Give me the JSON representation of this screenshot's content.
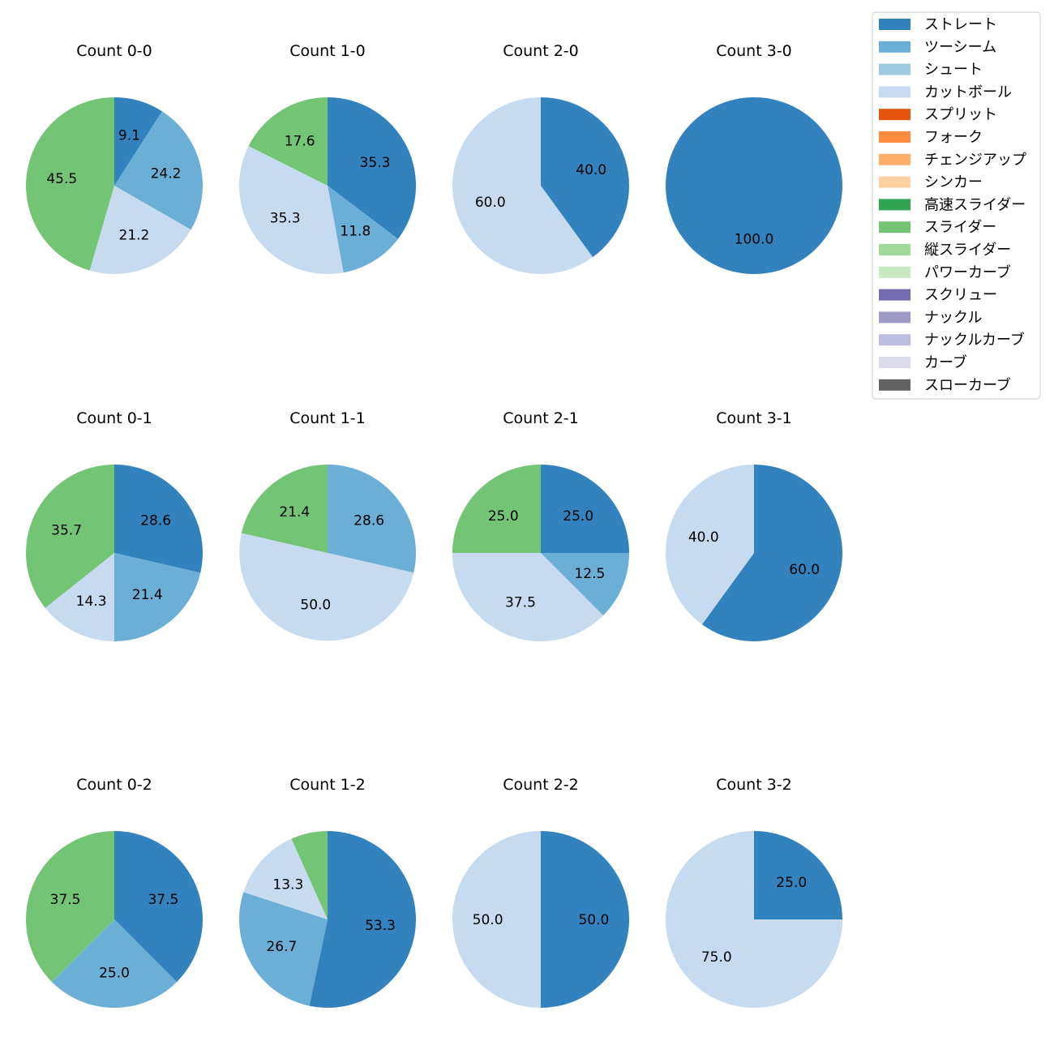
{
  "chart_data": {
    "type": "pie",
    "legend_position": "top-right",
    "colors": {
      "ストレート": "#3182bd",
      "ツーシーム": "#6baed6",
      "シュート": "#9ecae1",
      "カットボール": "#c6dbef",
      "スプリット": "#e6550d",
      "フォーク": "#fd8d3c",
      "チェンジアップ": "#fdae6b",
      "シンカー": "#fdd0a2",
      "高速スライダー": "#31a354",
      "スライダー": "#74c476",
      "縦スライダー": "#a1d99b",
      "パワーカーブ": "#c7e9c0",
      "スクリュー": "#756bb1",
      "ナックル": "#9e9ac8",
      "ナックルカーブ": "#bcbddc",
      "カーブ": "#dadaeb",
      "スローカーブ": "#636363"
    },
    "legend": [
      "ストレート",
      "ツーシーム",
      "シュート",
      "カットボール",
      "スプリット",
      "フォーク",
      "チェンジアップ",
      "シンカー",
      "高速スライダー",
      "スライダー",
      "縦スライダー",
      "パワーカーブ",
      "スクリュー",
      "ナックル",
      "ナックルカーブ",
      "カーブ",
      "スローカーブ"
    ],
    "charts": [
      {
        "title": "Count 0-0",
        "slices": [
          {
            "label": "ストレート",
            "value": 9.1
          },
          {
            "label": "ツーシーム",
            "value": 24.2
          },
          {
            "label": "カットボール",
            "value": 21.2
          },
          {
            "label": "スライダー",
            "value": 45.5
          }
        ]
      },
      {
        "title": "Count 1-0",
        "slices": [
          {
            "label": "ストレート",
            "value": 35.3
          },
          {
            "label": "ツーシーム",
            "value": 11.8
          },
          {
            "label": "カットボール",
            "value": 35.3
          },
          {
            "label": "スライダー",
            "value": 17.6
          }
        ]
      },
      {
        "title": "Count 2-0",
        "slices": [
          {
            "label": "ストレート",
            "value": 40.0
          },
          {
            "label": "カットボール",
            "value": 60.0
          }
        ]
      },
      {
        "title": "Count 3-0",
        "slices": [
          {
            "label": "ストレート",
            "value": 100.0
          }
        ]
      },
      {
        "title": "Count 0-1",
        "slices": [
          {
            "label": "ストレート",
            "value": 28.6
          },
          {
            "label": "ツーシーム",
            "value": 21.4
          },
          {
            "label": "カットボール",
            "value": 14.3
          },
          {
            "label": "スライダー",
            "value": 35.7
          }
        ]
      },
      {
        "title": "Count 1-1",
        "slices": [
          {
            "label": "ツーシーム",
            "value": 28.6
          },
          {
            "label": "カットボール",
            "value": 50.0
          },
          {
            "label": "スライダー",
            "value": 21.4
          }
        ]
      },
      {
        "title": "Count 2-1",
        "slices": [
          {
            "label": "ストレート",
            "value": 25.0
          },
          {
            "label": "ツーシーム",
            "value": 12.5
          },
          {
            "label": "カットボール",
            "value": 37.5
          },
          {
            "label": "スライダー",
            "value": 25.0
          }
        ]
      },
      {
        "title": "Count 3-1",
        "slices": [
          {
            "label": "ストレート",
            "value": 60.0
          },
          {
            "label": "カットボール",
            "value": 40.0
          }
        ]
      },
      {
        "title": "Count 0-2",
        "slices": [
          {
            "label": "ストレート",
            "value": 37.5
          },
          {
            "label": "ツーシーム",
            "value": 25.0
          },
          {
            "label": "スライダー",
            "value": 37.5
          }
        ]
      },
      {
        "title": "Count 1-2",
        "slices": [
          {
            "label": "ストレート",
            "value": 53.3
          },
          {
            "label": "ツーシーム",
            "value": 26.7
          },
          {
            "label": "カットボール",
            "value": 13.3
          },
          {
            "label": "スライダー",
            "value": 6.7,
            "show_label": false
          }
        ]
      },
      {
        "title": "Count 2-2",
        "slices": [
          {
            "label": "ストレート",
            "value": 50.0
          },
          {
            "label": "カットボール",
            "value": 50.0
          }
        ]
      },
      {
        "title": "Count 3-2",
        "slices": [
          {
            "label": "ストレート",
            "value": 25.0
          },
          {
            "label": "カットボール",
            "value": 75.0
          }
        ]
      }
    ]
  }
}
